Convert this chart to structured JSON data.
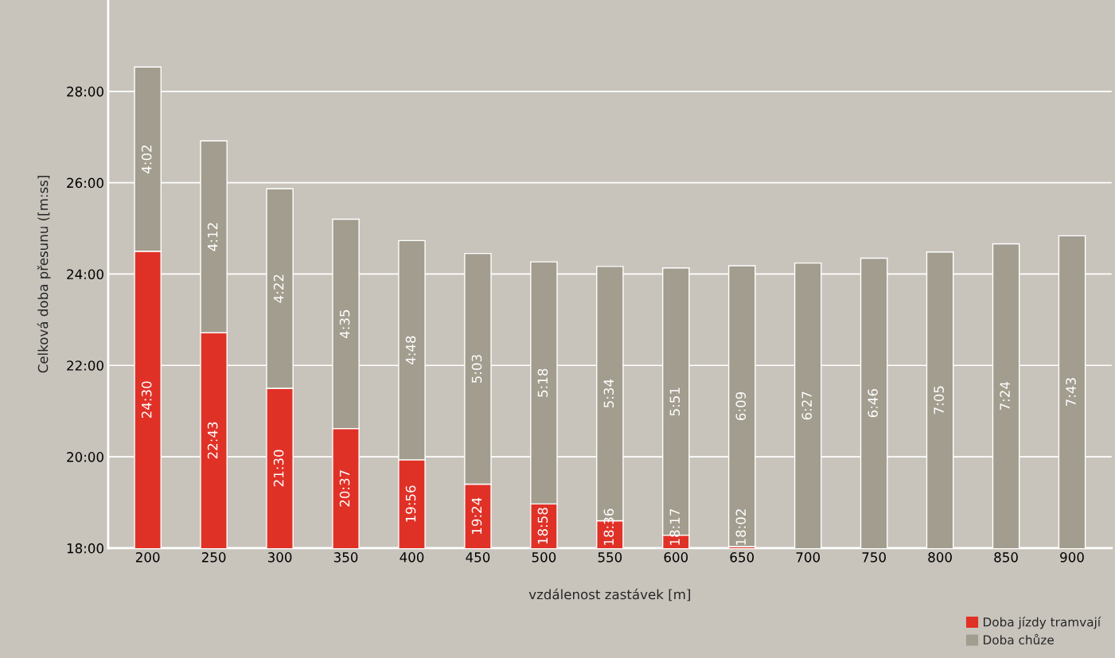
{
  "chart_data": {
    "type": "bar",
    "stacked": true,
    "xlabel": "vzdálenost zastávek [m]",
    "ylabel": "Celková doba přesunu ([m:ss]",
    "categories": [
      "200",
      "250",
      "300",
      "350",
      "400",
      "450",
      "500",
      "550",
      "600",
      "650",
      "700",
      "750",
      "800",
      "850",
      "900"
    ],
    "series": [
      {
        "name": "Doba jízdy tramvají",
        "color": "#e03127",
        "values": [
          24.5,
          22.717,
          21.5,
          20.617,
          19.933,
          19.4,
          18.967,
          18.6,
          18.283,
          18.033,
          null,
          null,
          null,
          null,
          null
        ],
        "value_labels": [
          "24:30",
          "22:43",
          "21:30",
          "20:37",
          "19:56",
          "19:24",
          "18:58",
          "18:36",
          "18:17",
          "18:02",
          null,
          null,
          null,
          null,
          null
        ]
      },
      {
        "name": "Doba chůze",
        "color": "#a29d8e",
        "base": [
          24.5,
          22.717,
          21.5,
          20.617,
          19.933,
          19.4,
          18.967,
          18.6,
          18.283,
          18.033,
          17.79,
          17.58,
          17.4,
          17.26,
          17.12
        ],
        "values": [
          4.033,
          4.2,
          4.367,
          4.583,
          4.8,
          5.05,
          5.3,
          5.567,
          5.85,
          6.15,
          6.45,
          6.767,
          7.083,
          7.4,
          7.717
        ],
        "value_labels": [
          "4:02",
          "4:12",
          "4:22",
          "4:35",
          "4:48",
          "5:03",
          "5:18",
          "5:34",
          "5:51",
          "6:09",
          "6:27",
          "6:46",
          "7:05",
          "7:24",
          "7:43"
        ]
      }
    ],
    "ylim": [
      18,
      30
    ],
    "yticks": [
      {
        "value": 18,
        "label": "18:00"
      },
      {
        "value": 20,
        "label": "20:00"
      },
      {
        "value": 22,
        "label": "22:00"
      },
      {
        "value": 24,
        "label": "24:00"
      },
      {
        "value": 26,
        "label": "26:00"
      },
      {
        "value": 28,
        "label": "28:00"
      }
    ],
    "grid": "y",
    "legend": "bottom right"
  }
}
